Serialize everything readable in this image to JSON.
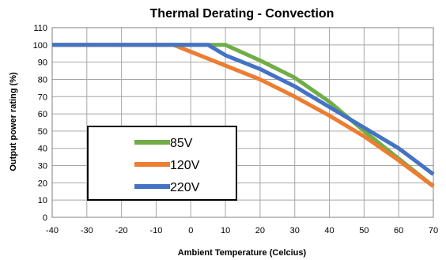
{
  "chart_data": {
    "type": "line",
    "title": "Thermal Derating - Convection",
    "xlabel": "Ambient Temperature (Celcius)",
    "ylabel": "Output power rating (%)",
    "xlim": [
      -40,
      70
    ],
    "ylim": [
      0,
      110
    ],
    "x_ticks": [
      -40,
      -30,
      -20,
      -10,
      0,
      10,
      20,
      30,
      40,
      50,
      60,
      70
    ],
    "y_ticks": [
      0,
      10,
      20,
      30,
      40,
      50,
      60,
      70,
      80,
      90,
      100,
      110
    ],
    "grid": true,
    "legend": "inside lower-left",
    "series": [
      {
        "name": "85V",
        "color": "#70ad47",
        "points": [
          [
            -40,
            100
          ],
          [
            10,
            100
          ],
          [
            20,
            91
          ],
          [
            30,
            81
          ],
          [
            40,
            67
          ],
          [
            50,
            50
          ],
          [
            60,
            34
          ],
          [
            70,
            18
          ]
        ]
      },
      {
        "name": "120V",
        "color": "#ed7d31",
        "points": [
          [
            -40,
            100
          ],
          [
            -5,
            100
          ],
          [
            0,
            96
          ],
          [
            10,
            88
          ],
          [
            20,
            80
          ],
          [
            30,
            70
          ],
          [
            40,
            59
          ],
          [
            50,
            47
          ],
          [
            60,
            33
          ],
          [
            70,
            18
          ]
        ]
      },
      {
        "name": "220V",
        "color": "#4472c4",
        "points": [
          [
            -40,
            100
          ],
          [
            5,
            100
          ],
          [
            10,
            94
          ],
          [
            20,
            86
          ],
          [
            30,
            76
          ],
          [
            40,
            64
          ],
          [
            50,
            52
          ],
          [
            60,
            40
          ],
          [
            70,
            25
          ]
        ]
      }
    ]
  }
}
